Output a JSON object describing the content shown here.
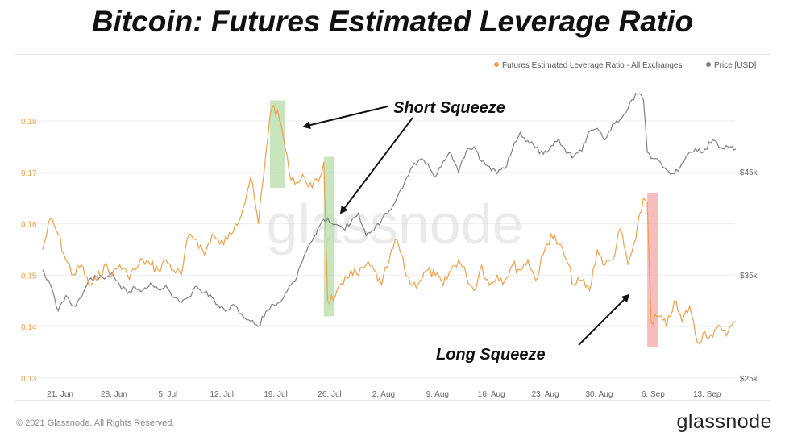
{
  "title": "Bitcoin: Futures Estimated Leverage Ratio",
  "watermark": "glassnode",
  "footer": {
    "copyright": "© 2021 Glassnode. All Rights Reserved.",
    "brand": "glassnode"
  },
  "colors": {
    "leverage": "#f0a04b",
    "price": "#808080",
    "squeeze_green": "#b7dca8",
    "squeeze_red": "#f4a6a6"
  },
  "chart_data": {
    "type": "line",
    "title": "Bitcoin: Futures Estimated Leverage Ratio",
    "x_range": [
      "2021-06-20",
      "2021-09-19"
    ],
    "x_tick_labels": [
      "21. Jun",
      "28. Jun",
      "5. Jul",
      "12. Jul",
      "19. Jul",
      "26. Jul",
      "2. Aug",
      "9. Aug",
      "16. Aug",
      "23. Aug",
      "30. Aug",
      "6. Sep",
      "13. Sep"
    ],
    "x_tick_days": [
      1,
      8,
      15,
      22,
      29,
      36,
      43,
      50,
      57,
      64,
      71,
      78,
      85
    ],
    "y_left": {
      "label": "Futures Estimated Leverage Ratio",
      "range": [
        0.13,
        0.185
      ],
      "ticks": [
        0.13,
        0.14,
        0.15,
        0.16,
        0.17,
        0.18
      ],
      "tick_labels": [
        "0.13",
        "0.14",
        "0.15",
        "0.16",
        "0.17",
        "0.18"
      ]
    },
    "y_right": {
      "label": "Price [USD]",
      "range": [
        25000,
        54000
      ],
      "ticks": [
        25000,
        35000,
        45000
      ],
      "tick_labels": [
        "$25k",
        "$35k",
        "$45k"
      ]
    },
    "legend": {
      "position": "top-right",
      "items": [
        "Futures Estimated Leverage Ratio - All Exchanges",
        "Price [USD]"
      ]
    },
    "series": [
      {
        "name": "Futures Estimated Leverage Ratio - All Exchanges",
        "axis": "left",
        "days": [
          0,
          1,
          2,
          3,
          4,
          5,
          6,
          7,
          8,
          9,
          10,
          11,
          12,
          13,
          14,
          15,
          16,
          17,
          18,
          19,
          20,
          21,
          22,
          23,
          24,
          25,
          26,
          27,
          28,
          29,
          29.5,
          30,
          31,
          32,
          33,
          34,
          35,
          36,
          36.5,
          37,
          38,
          39,
          40,
          41,
          42,
          43,
          44,
          45,
          46,
          47,
          48,
          49,
          50,
          51,
          52,
          53,
          54,
          55,
          56,
          57,
          58,
          59,
          60,
          61,
          62,
          63,
          64,
          65,
          66,
          67,
          68,
          69,
          70,
          71,
          72,
          73,
          74,
          75,
          76,
          77,
          78,
          78.5,
          79,
          80,
          81,
          82,
          83,
          84,
          85,
          86,
          87,
          88,
          89,
          90
        ],
        "values": [
          0.155,
          0.161,
          0.158,
          0.153,
          0.15,
          0.152,
          0.148,
          0.149,
          0.152,
          0.15,
          0.152,
          0.15,
          0.151,
          0.153,
          0.152,
          0.151,
          0.153,
          0.151,
          0.15,
          0.158,
          0.157,
          0.154,
          0.158,
          0.156,
          0.157,
          0.16,
          0.163,
          0.169,
          0.16,
          0.174,
          0.181,
          0.183,
          0.179,
          0.17,
          0.168,
          0.169,
          0.167,
          0.169,
          0.172,
          0.145,
          0.146,
          0.148,
          0.151,
          0.15,
          0.152,
          0.151,
          0.148,
          0.153,
          0.157,
          0.151,
          0.148,
          0.149,
          0.151,
          0.15,
          0.148,
          0.151,
          0.153,
          0.15,
          0.147,
          0.152,
          0.148,
          0.15,
          0.149,
          0.152,
          0.151,
          0.153,
          0.149,
          0.154,
          0.158,
          0.156,
          0.153,
          0.148,
          0.149,
          0.147,
          0.155,
          0.152,
          0.153,
          0.159,
          0.152,
          0.157,
          0.165,
          0.164,
          0.141,
          0.142,
          0.14,
          0.145,
          0.141,
          0.144,
          0.137,
          0.139,
          0.138,
          0.14,
          0.139,
          0.141
        ]
      },
      {
        "name": "Price [USD]",
        "axis": "right",
        "days": [
          0,
          1,
          2,
          3,
          4,
          5,
          6,
          7,
          8,
          9,
          10,
          11,
          12,
          13,
          14,
          15,
          16,
          17,
          18,
          19,
          20,
          21,
          22,
          23,
          24,
          25,
          26,
          27,
          28,
          29,
          30,
          31,
          32,
          33,
          34,
          35,
          36,
          37,
          38,
          39,
          40,
          41,
          42,
          43,
          44,
          45,
          46,
          47,
          48,
          49,
          50,
          51,
          52,
          53,
          54,
          55,
          56,
          57,
          58,
          59,
          60,
          61,
          62,
          63,
          64,
          65,
          66,
          67,
          68,
          69,
          70,
          71,
          72,
          73,
          74,
          75,
          76,
          77,
          78,
          78.5,
          79,
          80,
          81,
          82,
          83,
          84,
          85,
          86,
          87,
          88,
          89,
          90
        ],
        "values": [
          35500,
          34000,
          31500,
          33000,
          32000,
          32800,
          34500,
          34800,
          34600,
          35200,
          34000,
          33200,
          33800,
          33500,
          34200,
          33600,
          34000,
          32800,
          32300,
          32900,
          33900,
          33300,
          32800,
          31800,
          31600,
          32000,
          31000,
          30500,
          30000,
          31500,
          32100,
          32500,
          33900,
          34800,
          37000,
          38300,
          39800,
          40500,
          39900,
          39500,
          40000,
          41000,
          38800,
          39300,
          40300,
          41200,
          42500,
          44000,
          45500,
          46200,
          45800,
          44500,
          46000,
          46800,
          44900,
          47000,
          47400,
          46000,
          45500,
          44800,
          45300,
          47200,
          48800,
          48000,
          47300,
          46700,
          47500,
          48200,
          46800,
          46500,
          47000,
          48900,
          49200,
          48100,
          49600,
          50100,
          51100,
          52600,
          52000,
          46900,
          46300,
          46100,
          45200,
          44800,
          45800,
          46900,
          47000,
          47200,
          48100,
          47300,
          47400,
          47200
        ]
      }
    ],
    "annotations": [
      {
        "text": "Short Squeeze",
        "kind": "highlight",
        "color": "green",
        "start_day": 29.5,
        "end_day": 31.5,
        "y_low": 0.167,
        "y_high": 0.184
      },
      {
        "text": "Short Squeeze",
        "kind": "highlight",
        "color": "green",
        "start_day": 36.5,
        "end_day": 37.9,
        "y_low": 0.142,
        "y_high": 0.173
      },
      {
        "text": "Long Squeeze",
        "kind": "highlight",
        "color": "red",
        "start_day": 78.5,
        "end_day": 79.9,
        "y_low": 0.136,
        "y_high": 0.166
      }
    ],
    "annotation_labels": [
      "Short Squeeze",
      "Long Squeeze"
    ]
  }
}
